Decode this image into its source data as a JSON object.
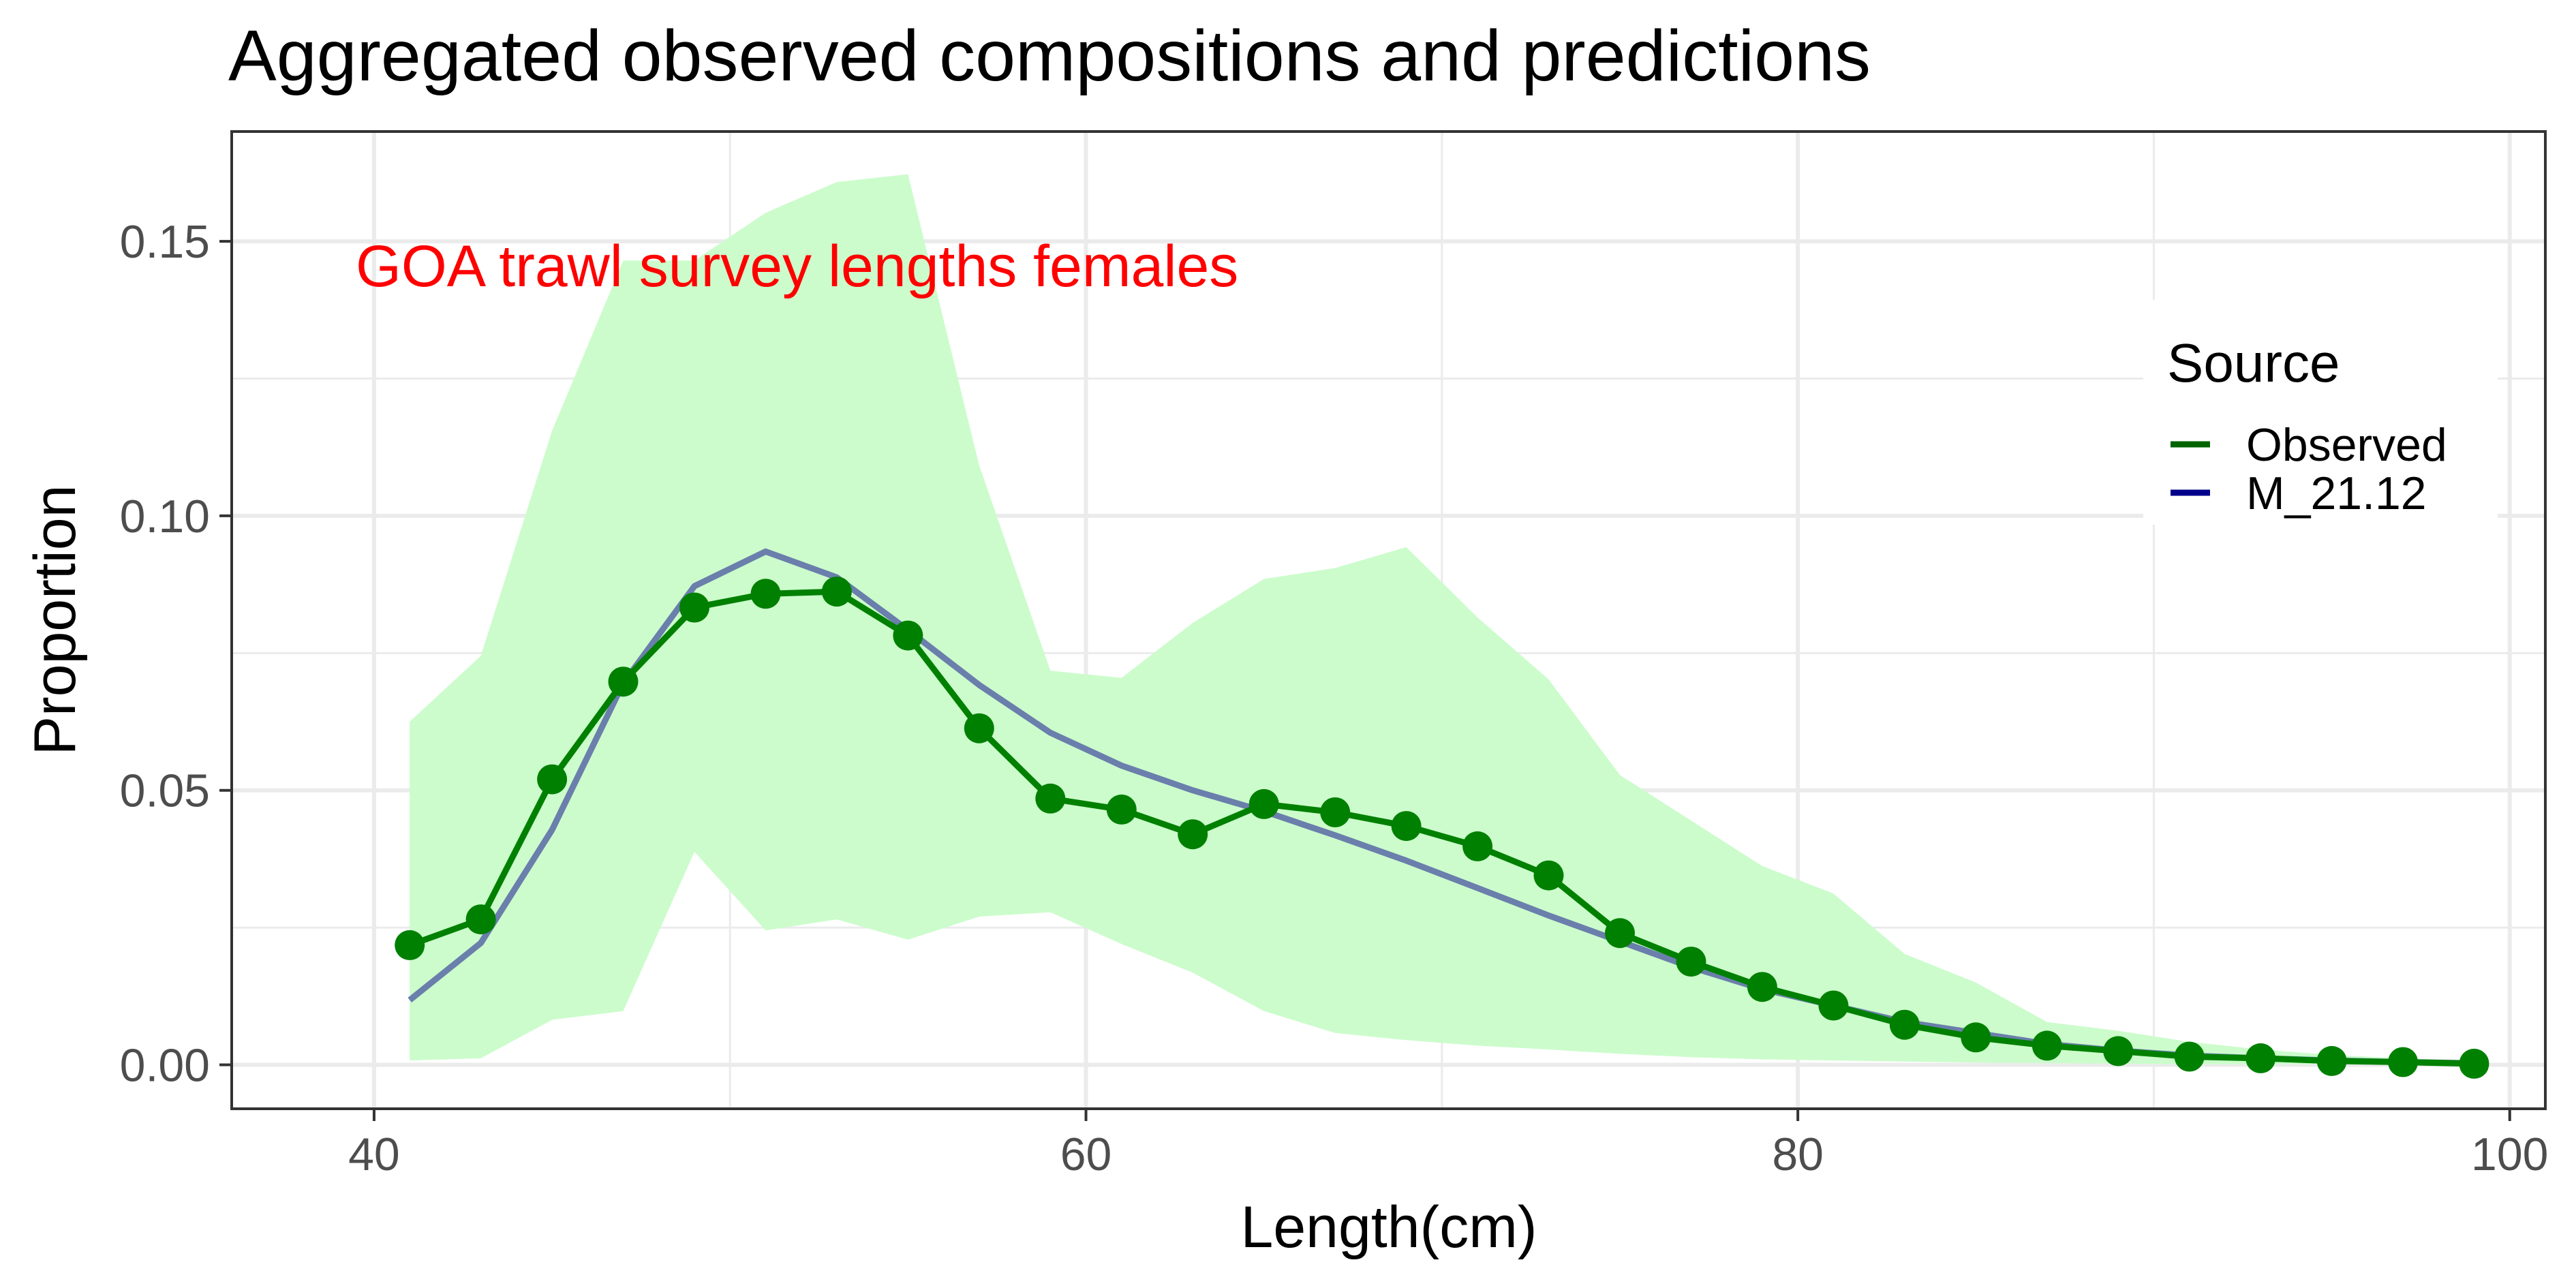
{
  "chart_data": {
    "type": "line",
    "title": "Aggregated observed compositions and predictions",
    "annotation": "GOA trawl survey lengths females",
    "xlabel": "Length(cm)",
    "ylabel": "Proportion",
    "xlim": [
      36,
      101
    ],
    "ylim": [
      -0.008,
      0.17
    ],
    "xticks": [
      40,
      60,
      80,
      100
    ],
    "xtick_labels": [
      "40",
      "60",
      "80",
      "100"
    ],
    "yticks": [
      0,
      0.05,
      0.1,
      0.15
    ],
    "ytick_labels": [
      "0.00",
      "0.05",
      "0.10",
      "0.15"
    ],
    "grid": true,
    "legend": {
      "title": "Source",
      "position": "right",
      "items": [
        {
          "label": "Observed",
          "color": "#006400"
        },
        {
          "label": "M_21.12",
          "color": "#00008B"
        }
      ]
    },
    "colors": {
      "observed": "#008000",
      "predicted": "#6A7FAB",
      "band": "#CCFCCC",
      "annotation": "#FF0000"
    },
    "x": [
      41,
      43,
      45,
      47,
      49,
      51,
      53,
      55,
      57,
      59,
      61,
      63,
      65,
      67,
      69,
      71,
      73,
      75,
      77,
      79,
      81,
      83,
      85,
      87,
      89,
      91,
      93,
      95,
      97,
      99
    ],
    "series": [
      {
        "name": "Observed",
        "values": [
          0.0218,
          0.0265,
          0.052,
          0.0698,
          0.0833,
          0.0858,
          0.0862,
          0.0782,
          0.0613,
          0.0485,
          0.0465,
          0.042,
          0.0475,
          0.046,
          0.0435,
          0.0398,
          0.0345,
          0.024,
          0.0188,
          0.0142,
          0.0108,
          0.0073,
          0.005,
          0.0035,
          0.0025,
          0.0015,
          0.0012,
          0.0007,
          0.0005,
          0.0002
        ]
      },
      {
        "name": "M_21.12",
        "values": [
          0.0118,
          0.0222,
          0.0428,
          0.0695,
          0.0872,
          0.0935,
          0.0888,
          0.0792,
          0.0692,
          0.0605,
          0.0545,
          0.05,
          0.0462,
          0.0418,
          0.0372,
          0.0322,
          0.0272,
          0.0225,
          0.0178,
          0.0138,
          0.0108,
          0.0078,
          0.0058,
          0.0038,
          0.0026,
          0.0017,
          0.0012,
          0.0008,
          0.0005,
          0.0003
        ]
      }
    ],
    "band": {
      "lower": [
        0.0008,
        0.0012,
        0.0082,
        0.0098,
        0.0388,
        0.0245,
        0.0265,
        0.0228,
        0.027,
        0.0278,
        0.022,
        0.0168,
        0.0098,
        0.0058,
        0.0045,
        0.0035,
        0.0028,
        0.002,
        0.0014,
        0.001,
        0.0008,
        0.0006,
        0.0004,
        0.0003,
        0.0002,
        0.0001,
        0.0001,
        0.0001,
        0.0001,
        0.0001
      ],
      "upper": [
        0.0625,
        0.0745,
        0.1155,
        0.1465,
        0.1465,
        0.1552,
        0.1608,
        0.1622,
        0.1092,
        0.0718,
        0.0705,
        0.0805,
        0.0885,
        0.0905,
        0.0943,
        0.0815,
        0.0702,
        0.0528,
        0.0445,
        0.0362,
        0.0312,
        0.0202,
        0.015,
        0.0078,
        0.0062,
        0.0042,
        0.0028,
        0.0018,
        0.0012,
        0.0008
      ]
    }
  }
}
